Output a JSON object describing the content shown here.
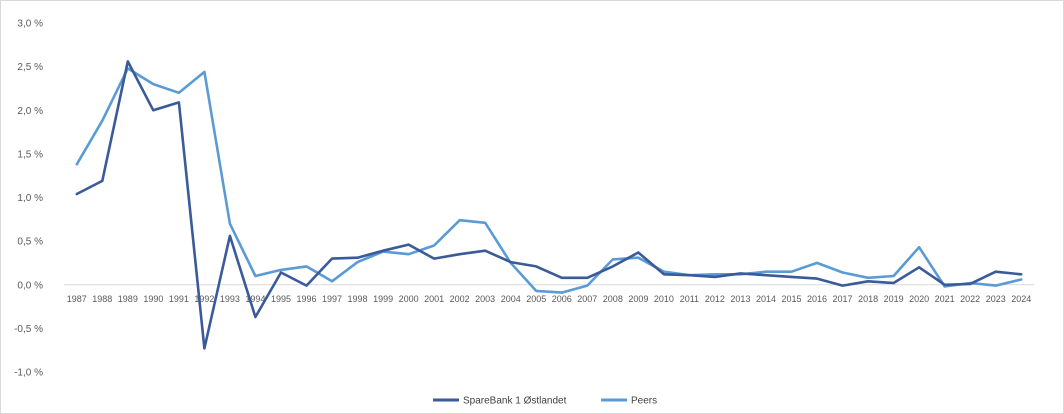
{
  "chart_data": {
    "type": "line",
    "title": "",
    "xlabel": "",
    "ylabel": "",
    "ylim": [
      -1.0,
      3.0
    ],
    "yticks": [
      "3,0 %",
      "2,5 %",
      "2,0 %",
      "1,5 %",
      "1,0 %",
      "0,5 %",
      "0,0 %",
      "-0,5 %",
      "-1,0 %"
    ],
    "ytick_values": [
      3.0,
      2.5,
      2.0,
      1.5,
      1.0,
      0.5,
      0.0,
      -0.5,
      -1.0
    ],
    "grid": false,
    "legend_position": "bottom",
    "categories": [
      "1987",
      "1988",
      "1989",
      "1990",
      "1991",
      "1992",
      "1993",
      "1994",
      "1995",
      "1996",
      "1997",
      "1998",
      "1999",
      "2000",
      "2001",
      "2002",
      "2003",
      "2004",
      "2005",
      "2006",
      "2007",
      "2008",
      "2009",
      "2010",
      "2011",
      "2012",
      "2013",
      "2014",
      "2015",
      "2016",
      "2017",
      "2018",
      "2019",
      "2020",
      "2021",
      "2022",
      "2023",
      "2024"
    ],
    "series": [
      {
        "name": "SpareBank 1 Østlandet",
        "color": "#3b5a9a",
        "values": [
          1.04,
          1.19,
          2.56,
          2.0,
          2.09,
          -0.73,
          0.56,
          -0.37,
          0.14,
          -0.01,
          0.3,
          0.31,
          0.39,
          0.46,
          0.3,
          0.35,
          0.39,
          0.26,
          0.21,
          0.08,
          0.08,
          0.21,
          0.37,
          0.12,
          0.11,
          0.09,
          0.13,
          0.11,
          0.09,
          0.07,
          -0.01,
          0.04,
          0.02,
          0.2,
          0.0,
          0.01,
          0.15,
          0.12
        ]
      },
      {
        "name": "Peers",
        "color": "#5b9bd5",
        "values": [
          1.38,
          1.88,
          2.48,
          2.3,
          2.2,
          2.44,
          0.7,
          0.1,
          0.17,
          0.21,
          0.04,
          0.26,
          0.38,
          0.35,
          0.45,
          0.74,
          0.71,
          0.25,
          -0.07,
          -0.09,
          -0.01,
          0.29,
          0.31,
          0.15,
          0.11,
          0.12,
          0.12,
          0.15,
          0.15,
          0.25,
          0.14,
          0.08,
          0.1,
          0.43,
          -0.02,
          0.02,
          -0.01,
          0.06
        ]
      }
    ]
  }
}
